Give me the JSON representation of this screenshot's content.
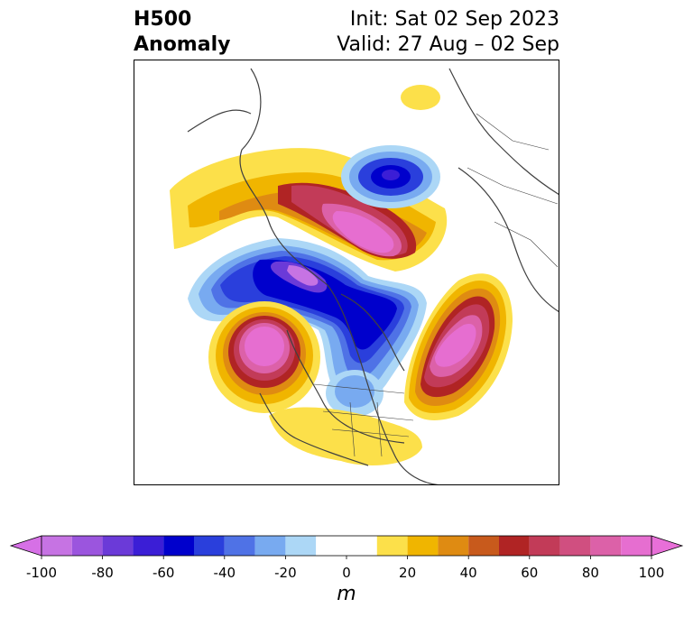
{
  "title": {
    "left_line1": "H500",
    "left_line2": "Anomaly",
    "right_line1": "Init: Sat 02 Sep 2023",
    "right_line2": "Valid: 27 Aug – 02 Sep"
  },
  "colorbar": {
    "unit": "m",
    "ticks": [
      "-100",
      "-80",
      "-60",
      "-40",
      "-20",
      "0",
      "20",
      "40",
      "60",
      "80",
      "100"
    ],
    "tick_values": [
      -100,
      -80,
      -60,
      -40,
      -20,
      0,
      20,
      40,
      60,
      80,
      100
    ],
    "min_color": "#d670e6",
    "max_color": "#e86fd8",
    "levels": [
      {
        "from": -100,
        "to": -90,
        "color": "#c673e3"
      },
      {
        "from": -90,
        "to": -80,
        "color": "#9b55de"
      },
      {
        "from": -80,
        "to": -70,
        "color": "#6b3ad8"
      },
      {
        "from": -70,
        "to": -60,
        "color": "#3b1ed6"
      },
      {
        "from": -60,
        "to": -50,
        "color": "#0000cc"
      },
      {
        "from": -50,
        "to": -40,
        "color": "#2a3fdc"
      },
      {
        "from": -40,
        "to": -30,
        "color": "#4f72e6"
      },
      {
        "from": -30,
        "to": -20,
        "color": "#78aaf0"
      },
      {
        "from": -20,
        "to": -10,
        "color": "#acd7f6"
      },
      {
        "from": -10,
        "to": 10,
        "color": "#ffffff"
      },
      {
        "from": 10,
        "to": 20,
        "color": "#fce04a"
      },
      {
        "from": 20,
        "to": 30,
        "color": "#f0b500"
      },
      {
        "from": 30,
        "to": 40,
        "color": "#df8b12"
      },
      {
        "from": 40,
        "to": 50,
        "color": "#c85a1c"
      },
      {
        "from": 50,
        "to": 60,
        "color": "#b02424"
      },
      {
        "from": 60,
        "to": 70,
        "color": "#c23b58"
      },
      {
        "from": 70,
        "to": 80,
        "color": "#d04f80"
      },
      {
        "from": 80,
        "to": 90,
        "color": "#dc61a8"
      },
      {
        "from": 90,
        "to": 100,
        "color": "#e66ed0"
      }
    ]
  }
}
